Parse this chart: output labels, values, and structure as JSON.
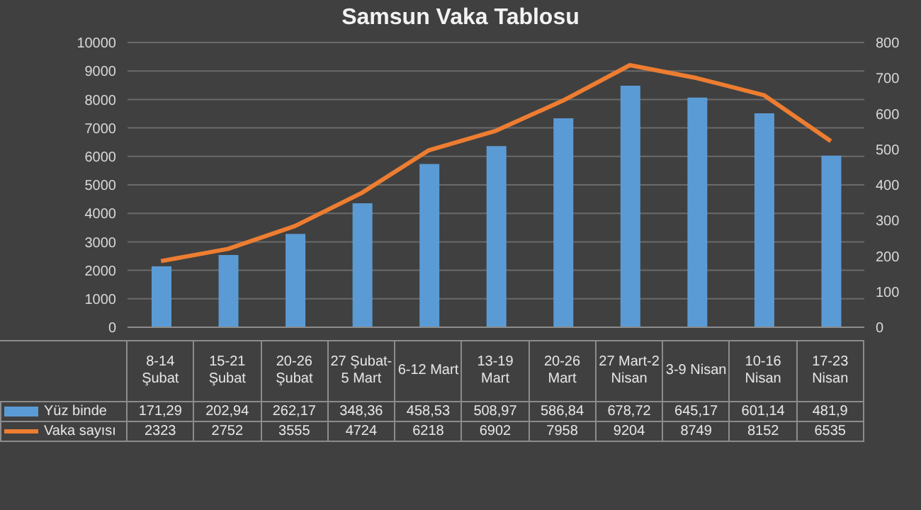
{
  "chart_data": {
    "type": "bar",
    "title": "Samsun Vaka Tablosu",
    "categories": [
      "8-14 Şubat",
      "15-21 Şubat",
      "20-26 Şubat",
      "27 Şubat-5 Mart",
      "6-12 Mart",
      "13-19 Mart",
      "20-26 Mart",
      "27 Mart-2 Nisan",
      "3-9 Nisan",
      "10-16 Nisan",
      "17-23 Nisan"
    ],
    "series": [
      {
        "name": "Yüz binde",
        "axis": "y2",
        "color": "#5b9bd5",
        "values": [
          171.29,
          202.94,
          262.17,
          348.36,
          458.53,
          508.97,
          586.84,
          678.72,
          645.17,
          601.14,
          481.9
        ],
        "value_labels": [
          "171,29",
          "202,94",
          "262,17",
          "348,36",
          "458,53",
          "508,97",
          "586,84",
          "678,72",
          "645,17",
          "601,14",
          "481,9"
        ]
      },
      {
        "name": "Vaka sayısı",
        "type": "line",
        "axis": "y",
        "color": "#ed7d31",
        "values": [
          2323,
          2752,
          3555,
          4724,
          6218,
          6902,
          7958,
          9204,
          8749,
          8152,
          6535
        ],
        "value_labels": [
          "2323",
          "2752",
          "3555",
          "4724",
          "6218",
          "6902",
          "7958",
          "9204",
          "8749",
          "8152",
          "6535"
        ]
      }
    ],
    "ylim": [
      0,
      10000
    ],
    "yticks": [
      0,
      1000,
      2000,
      3000,
      4000,
      5000,
      6000,
      7000,
      8000,
      9000,
      10000
    ],
    "y2lim": [
      0,
      800
    ],
    "y2ticks": [
      0,
      100,
      200,
      300,
      400,
      500,
      600,
      700,
      800
    ],
    "grid": "y",
    "legend": "bottom",
    "marker": "none",
    "line_style": "solid"
  }
}
